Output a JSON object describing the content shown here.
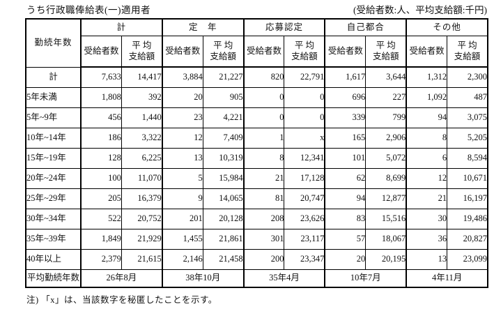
{
  "page": {
    "title": "うち行政職俸給表(一)適用者",
    "unit_note": "(受給者数:人、平均支給額:千円)",
    "footnote": "注) 「x」は、当該数字を秘匿したことを示す。"
  },
  "table": {
    "row_header": "勤続年数",
    "groups": [
      "計",
      "定　年",
      "応募認定",
      "自己都合",
      "その他"
    ],
    "sub_headers": {
      "recipients": "受給者数",
      "avg_line1": "平 均",
      "avg_line2": "支給額"
    },
    "rows": [
      {
        "label": "計",
        "label_align": "center",
        "values": [
          "7,633",
          "14,417",
          "3,884",
          "21,227",
          "820",
          "22,791",
          "1,617",
          "3,644",
          "1,312",
          "2,300"
        ]
      },
      {
        "label": "5年未満",
        "label_align": "left",
        "values": [
          "1,808",
          "392",
          "20",
          "905",
          "0",
          "0",
          "696",
          "227",
          "1,092",
          "487"
        ]
      },
      {
        "label": "5年~9年",
        "label_align": "left",
        "values": [
          "456",
          "1,440",
          "23",
          "4,221",
          "0",
          "0",
          "339",
          "799",
          "94",
          "3,075"
        ]
      },
      {
        "label": "10年~14年",
        "label_align": "left",
        "values": [
          "186",
          "3,322",
          "12",
          "7,409",
          "1",
          "x",
          "165",
          "2,906",
          "8",
          "5,205"
        ]
      },
      {
        "label": "15年~19年",
        "label_align": "left",
        "values": [
          "128",
          "6,225",
          "13",
          "10,319",
          "8",
          "12,341",
          "101",
          "5,072",
          "6",
          "8,594"
        ]
      },
      {
        "label": "20年~24年",
        "label_align": "left",
        "values": [
          "100",
          "11,070",
          "5",
          "15,984",
          "21",
          "17,128",
          "62",
          "8,699",
          "12",
          "10,671"
        ]
      },
      {
        "label": "25年~29年",
        "label_align": "left",
        "values": [
          "205",
          "16,379",
          "9",
          "14,065",
          "81",
          "20,747",
          "94",
          "12,877",
          "21",
          "16,197"
        ]
      },
      {
        "label": "30年~34年",
        "label_align": "left",
        "values": [
          "522",
          "20,752",
          "201",
          "20,128",
          "208",
          "23,626",
          "83",
          "15,516",
          "30",
          "19,486"
        ]
      },
      {
        "label": "35年~39年",
        "label_align": "left",
        "values": [
          "1,849",
          "21,929",
          "1,455",
          "21,861",
          "301",
          "23,117",
          "57",
          "18,067",
          "36",
          "20,827"
        ]
      },
      {
        "label": "40年以上",
        "label_align": "left",
        "values": [
          "2,379",
          "21,615",
          "2,146",
          "21,458",
          "200",
          "23,347",
          "20",
          "20,195",
          "13",
          "23,099"
        ]
      }
    ],
    "avg_row": {
      "label": "平均勤続年数",
      "values": [
        "26年8月",
        "38年10月",
        "35年4月",
        "10年7月",
        "4年11月"
      ]
    }
  },
  "colors": {
    "text": "#111111",
    "border": "#000000",
    "background": "#ffffff"
  }
}
